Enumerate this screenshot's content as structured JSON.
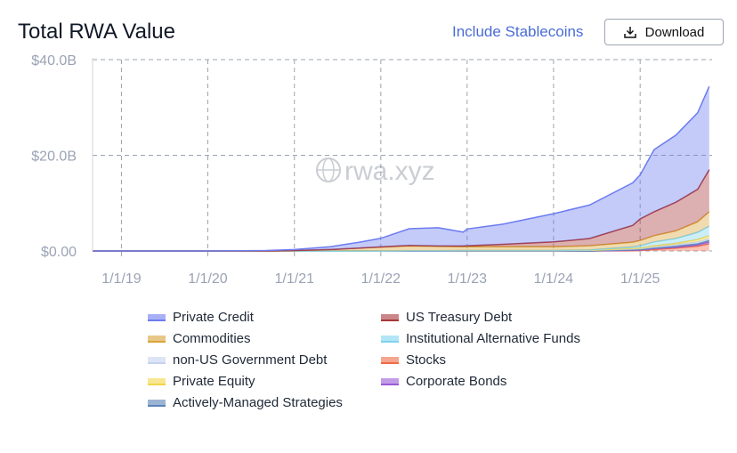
{
  "header": {
    "title": "Total RWA Value",
    "toggle_label": "Include Stablecoins",
    "download_label": "Download"
  },
  "colors": {
    "Private Credit": "#6c7cf0",
    "US Treasury Debt": "#a8363a",
    "Commodities": "#d9a43a",
    "Institutional Alternative Funds": "#7fd4ee",
    "non-US Government Debt": "#c6d2ee",
    "Stocks": "#ef6a45",
    "Private Equity": "#f3d64a",
    "Corporate Bonds": "#9b5ad9",
    "Actively-Managed Strategies": "#5b84b8"
  },
  "legend": [
    "Private Credit",
    "US Treasury Debt",
    "Commodities",
    "Institutional Alternative Funds",
    "non-US Government Debt",
    "Stocks",
    "Private Equity",
    "Corporate Bonds",
    "Actively-Managed Strategies"
  ],
  "watermark": "rwa.xyz",
  "chart_data": {
    "type": "area",
    "stacked": true,
    "ylim": [
      0,
      40
    ],
    "y_unit": "billion USD",
    "yticks": [
      "$0.00",
      "$20.0B",
      "$40.0B"
    ],
    "ytick_values": [
      0,
      20,
      40
    ],
    "xticks": [
      "1/1/19",
      "1/1/20",
      "1/1/21",
      "1/1/22",
      "1/1/23",
      "1/1/24",
      "1/1/25"
    ],
    "xtick_dates": [
      "2019-01-01",
      "2020-01-01",
      "2021-01-01",
      "2022-01-01",
      "2023-01-01",
      "2024-01-01",
      "2025-01-01"
    ],
    "xrange": [
      "2018-09-01",
      "2025-11-01"
    ],
    "grid": true,
    "legend_position": "bottom",
    "x": [
      "2018-09-01",
      "2019-06-01",
      "2020-01-01",
      "2020-09-01",
      "2021-01-01",
      "2021-06-01",
      "2021-10-01",
      "2022-01-01",
      "2022-05-01",
      "2022-09-01",
      "2022-12-15",
      "2023-01-01",
      "2023-06-01",
      "2024-01-01",
      "2024-06-01",
      "2024-12-01",
      "2025-01-01",
      "2025-03-01",
      "2025-06-01",
      "2025-09-01",
      "2025-10-20"
    ],
    "series": [
      {
        "name": "Stocks",
        "values": [
          0,
          0,
          0,
          0,
          0,
          0,
          0,
          0,
          0,
          0,
          0,
          0,
          0,
          0,
          0,
          0.05,
          0.1,
          0.3,
          0.6,
          1.0,
          1.5
        ]
      },
      {
        "name": "Corporate Bonds",
        "values": [
          0,
          0,
          0,
          0,
          0,
          0,
          0,
          0,
          0,
          0,
          0,
          0,
          0,
          0,
          0,
          0.1,
          0.1,
          0.2,
          0.2,
          0.3,
          0.4
        ]
      },
      {
        "name": "Actively-Managed Strategies",
        "values": [
          0,
          0,
          0,
          0,
          0,
          0,
          0,
          0,
          0,
          0,
          0,
          0,
          0,
          0,
          0,
          0.1,
          0.1,
          0.1,
          0.2,
          0.2,
          0.3
        ]
      },
      {
        "name": "non-US Government Debt",
        "values": [
          0,
          0,
          0,
          0,
          0,
          0,
          0,
          0,
          0.05,
          0.05,
          0.1,
          0.1,
          0.1,
          0.1,
          0.15,
          0.2,
          0.2,
          0.3,
          0.3,
          0.4,
          0.4
        ]
      },
      {
        "name": "Private Equity",
        "values": [
          0,
          0,
          0,
          0,
          0,
          0,
          0,
          0,
          0,
          0,
          0,
          0,
          0,
          0,
          0,
          0.1,
          0.1,
          0.2,
          0.3,
          0.5,
          0.6
        ]
      },
      {
        "name": "Institutional Alternative Funds",
        "values": [
          0,
          0,
          0,
          0,
          0,
          0,
          0,
          0,
          0,
          0,
          0,
          0,
          0,
          0,
          0.05,
          0.3,
          0.5,
          0.8,
          1.0,
          1.5,
          2.0
        ]
      },
      {
        "name": "Commodities",
        "values": [
          0,
          0,
          0,
          0,
          0.1,
          0.3,
          0.6,
          0.8,
          1.0,
          0.9,
          0.8,
          0.8,
          0.8,
          0.8,
          0.9,
          1.0,
          1.1,
          1.3,
          1.6,
          2.2,
          3.0
        ]
      },
      {
        "name": "US Treasury Debt",
        "values": [
          0,
          0,
          0,
          0,
          0,
          0,
          0,
          0.05,
          0.1,
          0.1,
          0.15,
          0.2,
          0.5,
          1.0,
          1.5,
          3.5,
          4.5,
          5.0,
          6.0,
          6.8,
          8.8
        ]
      },
      {
        "name": "Private Credit",
        "values": [
          0,
          0,
          0,
          0.1,
          0.2,
          0.6,
          1.2,
          1.8,
          3.5,
          3.8,
          2.9,
          3.5,
          4.2,
          5.9,
          7.0,
          8.9,
          9.2,
          13.0,
          14.0,
          16.0,
          17.4
        ]
      }
    ]
  }
}
